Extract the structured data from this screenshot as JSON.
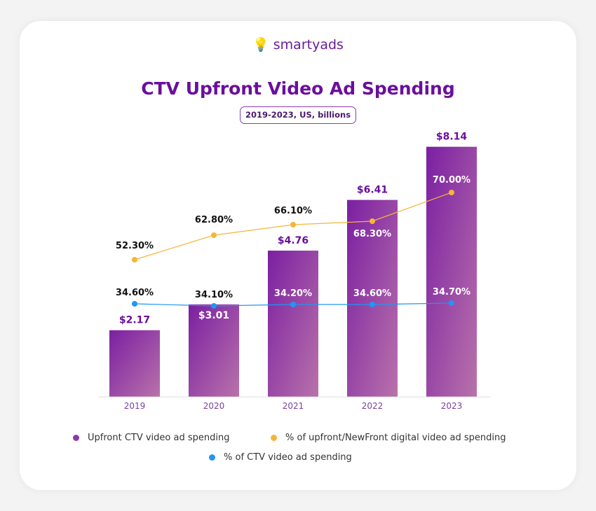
{
  "brand": "smartyads",
  "chart_data": {
    "type": "bar",
    "title": "CTV Upfront Video Ad Spending",
    "subtitle": "2019-2023, US, billions",
    "categories": [
      "2019",
      "2020",
      "2021",
      "2022",
      "2023"
    ],
    "series": [
      {
        "name": "Upfront CTV video ad spending",
        "type": "bar",
        "values": [
          2.17,
          3.01,
          4.76,
          6.41,
          8.14
        ],
        "labels": [
          "$2.17",
          "$3.01",
          "$4.76",
          "$6.41",
          "$8.14"
        ],
        "color": "#7b1fa2"
      },
      {
        "name": "% of upfront/NewFront digital video ad spending",
        "type": "line",
        "values": [
          52.3,
          62.8,
          66.1,
          68.3,
          70.0
        ],
        "labels": [
          "52.30%",
          "62.80%",
          "66.10%",
          "68.30%",
          "70.00%"
        ],
        "color": "#f7b538"
      },
      {
        "name": "% of CTV video ad spending",
        "type": "line",
        "values": [
          34.6,
          34.1,
          34.2,
          34.6,
          34.7
        ],
        "labels": [
          "34.60%",
          "34.10%",
          "34.20%",
          "34.60%",
          "34.70%"
        ],
        "color": "#2196f3"
      }
    ],
    "grid": false,
    "legend": "bottom"
  }
}
